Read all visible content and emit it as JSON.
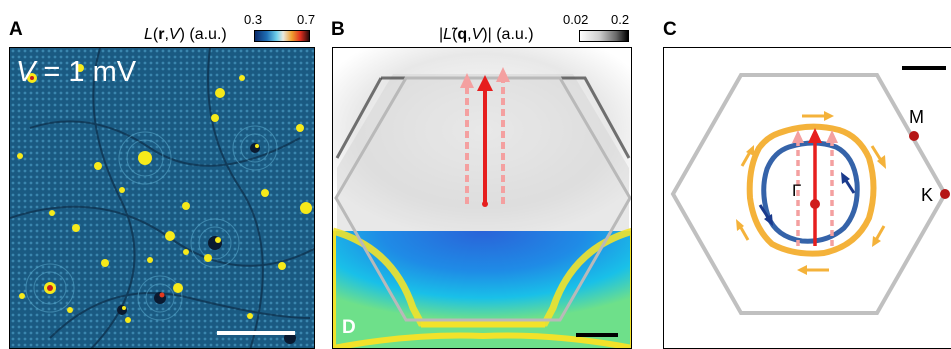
{
  "panels": {
    "A": {
      "letter": "A",
      "colorbar_label_html": "<i>L</i>(<b>r</b>,<i>V</i>) (a.u.)",
      "cbar_min": "0.3",
      "cbar_max": "0.7",
      "overlay_text_html": "<i>V</i> = 1 mV"
    },
    "B": {
      "letter": "B",
      "colorbar_label_html": "|<i>L</i>̃(<b>q</b>,<i>V</i>)| (a.u.)",
      "cbar_min": "0.02",
      "cbar_max": "0.2"
    },
    "C": {
      "letter": "C",
      "labels": {
        "gamma": "Γ",
        "M": "M",
        "K": "K"
      }
    },
    "D": {
      "letter": "D"
    }
  },
  "colors": {
    "map_background": "#1d5f8a",
    "impurity_yellow": "#f7ea1a",
    "brillouin_zone": "#b9b9b9",
    "arrow_red": "#e61e1e",
    "arrow_pink": "#f4a0a0",
    "inner_fermi_surface": "#3563a9",
    "outer_fermi_surface": "#f4b23a",
    "spin_arrow_navy": "#1a3a8c",
    "spin_arrow_orange": "#f4b23a"
  }
}
